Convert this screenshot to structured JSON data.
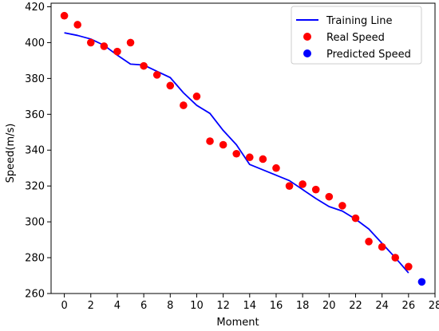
{
  "colors": {
    "training_line": "#0000ff",
    "real_speed": "#ff0000",
    "predicted_speed": "#0000ff",
    "axes": "#000000"
  },
  "chart_data": {
    "type": "line",
    "title": "",
    "xlabel": "Moment",
    "ylabel": "Speed(m/s)",
    "xlim": [
      -1,
      28
    ],
    "ylim": [
      260,
      422
    ],
    "xticks": [
      0,
      2,
      4,
      6,
      8,
      10,
      12,
      14,
      16,
      18,
      20,
      22,
      24,
      26,
      28
    ],
    "yticks": [
      260,
      280,
      300,
      320,
      340,
      360,
      380,
      400,
      420
    ],
    "grid": false,
    "legend_position": "top-right",
    "series": [
      {
        "name": "Training Line",
        "kind": "line",
        "x": [
          0,
          1,
          2,
          3,
          4,
          5,
          6,
          7,
          8,
          9,
          10,
          11,
          12,
          13,
          14,
          15,
          16,
          17,
          18,
          19,
          20,
          21,
          22,
          23,
          24,
          25,
          26
        ],
        "y": [
          405.5,
          404,
          402,
          398.5,
          393,
          388,
          387.5,
          384,
          380.5,
          372,
          365,
          360.5,
          351,
          343,
          332,
          329,
          326,
          323,
          318,
          313,
          308.5,
          306,
          301.5,
          296,
          288,
          280,
          271.5
        ]
      },
      {
        "name": "Real Speed",
        "kind": "scatter",
        "x": [
          0,
          1,
          2,
          3,
          4,
          5,
          6,
          7,
          8,
          9,
          10,
          11,
          12,
          13,
          14,
          15,
          16,
          17,
          18,
          19,
          20,
          21,
          22,
          23,
          24,
          25,
          26
        ],
        "y": [
          415,
          410,
          400,
          398,
          395,
          400,
          387,
          382,
          376,
          365,
          370,
          345,
          343,
          338,
          336,
          335,
          330,
          320,
          321,
          318,
          314,
          309,
          302,
          289,
          286,
          280,
          275
        ]
      },
      {
        "name": "Predicted Speed",
        "kind": "scatter",
        "x": [
          27
        ],
        "y": [
          266.5
        ]
      }
    ]
  }
}
